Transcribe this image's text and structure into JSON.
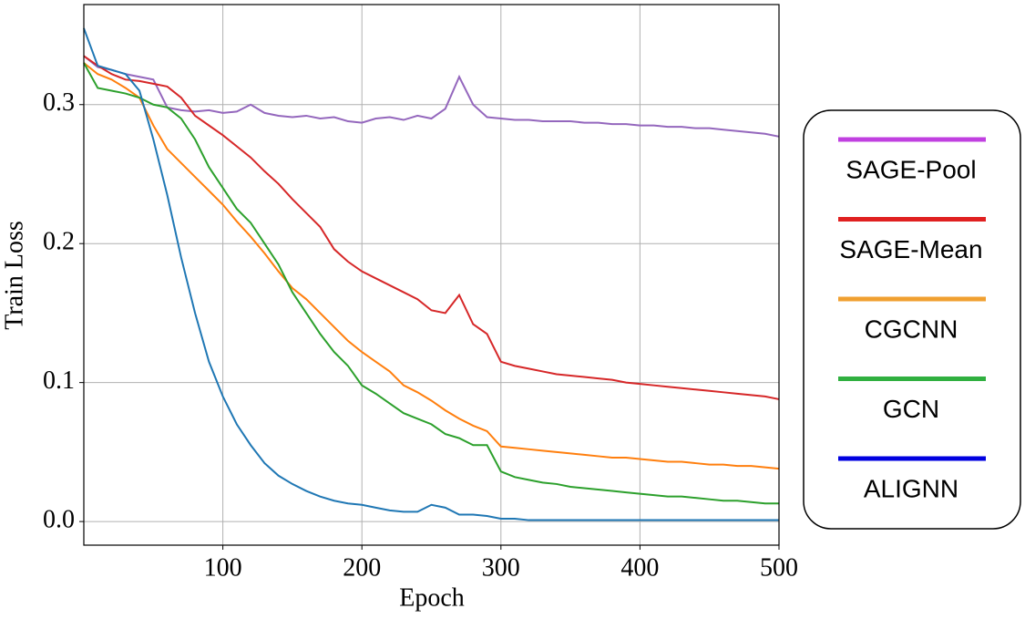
{
  "chart_data": {
    "type": "line",
    "xlabel": "Epoch",
    "ylabel": "Train Loss",
    "xlim": [
      0,
      500
    ],
    "ylim": [
      -0.017,
      0.372
    ],
    "xticks": [
      100,
      200,
      300,
      400,
      500
    ],
    "yticks": [
      {
        "value": 0,
        "label": "0.0"
      },
      0.1,
      0.2,
      0.3
    ],
    "grid": true,
    "legend": "right",
    "x": [
      0,
      10,
      20,
      30,
      40,
      50,
      60,
      70,
      80,
      90,
      100,
      110,
      120,
      130,
      140,
      150,
      160,
      170,
      180,
      190,
      200,
      210,
      220,
      230,
      240,
      250,
      260,
      270,
      280,
      290,
      300,
      310,
      320,
      330,
      340,
      350,
      360,
      370,
      380,
      390,
      400,
      410,
      420,
      430,
      440,
      450,
      460,
      470,
      480,
      490,
      500
    ],
    "series": [
      {
        "name": "SAGE-Pool",
        "color": "#9467bd",
        "legend_color": "#c040e0",
        "values": [
          0.335,
          0.327,
          0.325,
          0.322,
          0.32,
          0.318,
          0.298,
          0.296,
          0.295,
          0.296,
          0.294,
          0.295,
          0.3,
          0.294,
          0.292,
          0.291,
          0.292,
          0.29,
          0.291,
          0.288,
          0.287,
          0.29,
          0.291,
          0.289,
          0.292,
          0.29,
          0.297,
          0.32,
          0.3,
          0.291,
          0.29,
          0.289,
          0.289,
          0.288,
          0.288,
          0.288,
          0.287,
          0.287,
          0.286,
          0.286,
          0.285,
          0.285,
          0.284,
          0.284,
          0.283,
          0.283,
          0.282,
          0.281,
          0.28,
          0.279,
          0.277
        ]
      },
      {
        "name": "SAGE-Mean",
        "color": "#d62728",
        "legend_color": "#e02020",
        "values": [
          0.335,
          0.328,
          0.322,
          0.318,
          0.317,
          0.315,
          0.313,
          0.305,
          0.292,
          0.285,
          0.278,
          0.27,
          0.262,
          0.252,
          0.243,
          0.232,
          0.222,
          0.212,
          0.196,
          0.187,
          0.18,
          0.175,
          0.17,
          0.165,
          0.16,
          0.152,
          0.15,
          0.163,
          0.142,
          0.135,
          0.115,
          0.112,
          0.11,
          0.108,
          0.106,
          0.105,
          0.104,
          0.103,
          0.102,
          0.1,
          0.099,
          0.098,
          0.097,
          0.096,
          0.095,
          0.094,
          0.093,
          0.092,
          0.091,
          0.09,
          0.088
        ]
      },
      {
        "name": "CGCNN",
        "color": "#ff7f0e",
        "legend_color": "#f0a030",
        "values": [
          0.33,
          0.322,
          0.318,
          0.312,
          0.305,
          0.285,
          0.268,
          0.258,
          0.248,
          0.238,
          0.228,
          0.216,
          0.205,
          0.193,
          0.18,
          0.168,
          0.16,
          0.15,
          0.14,
          0.13,
          0.122,
          0.115,
          0.108,
          0.098,
          0.093,
          0.087,
          0.08,
          0.074,
          0.069,
          0.065,
          0.054,
          0.053,
          0.052,
          0.051,
          0.05,
          0.049,
          0.048,
          0.047,
          0.046,
          0.046,
          0.045,
          0.044,
          0.043,
          0.043,
          0.042,
          0.041,
          0.041,
          0.04,
          0.04,
          0.039,
          0.038
        ]
      },
      {
        "name": "GCN",
        "color": "#2ca02c",
        "legend_color": "#30b040",
        "values": [
          0.33,
          0.312,
          0.31,
          0.308,
          0.305,
          0.3,
          0.298,
          0.29,
          0.275,
          0.255,
          0.24,
          0.225,
          0.215,
          0.2,
          0.185,
          0.165,
          0.15,
          0.135,
          0.122,
          0.112,
          0.098,
          0.092,
          0.085,
          0.078,
          0.074,
          0.07,
          0.063,
          0.06,
          0.055,
          0.055,
          0.036,
          0.032,
          0.03,
          0.028,
          0.027,
          0.025,
          0.024,
          0.023,
          0.022,
          0.021,
          0.02,
          0.019,
          0.018,
          0.018,
          0.017,
          0.016,
          0.015,
          0.015,
          0.014,
          0.013,
          0.013
        ]
      },
      {
        "name": "ALIGNN",
        "color": "#1f77b4",
        "legend_color": "#0000e0",
        "values": [
          0.355,
          0.328,
          0.325,
          0.322,
          0.31,
          0.275,
          0.235,
          0.19,
          0.15,
          0.115,
          0.09,
          0.07,
          0.055,
          0.042,
          0.033,
          0.027,
          0.022,
          0.018,
          0.015,
          0.013,
          0.012,
          0.01,
          0.008,
          0.007,
          0.007,
          0.012,
          0.01,
          0.005,
          0.005,
          0.004,
          0.002,
          0.002,
          0.001,
          0.001,
          0.001,
          0.001,
          0.001,
          0.001,
          0.001,
          0.001,
          0.001,
          0.001,
          0.001,
          0.001,
          0.001,
          0.001,
          0.001,
          0.001,
          0.001,
          0.001,
          0.001
        ]
      }
    ]
  }
}
